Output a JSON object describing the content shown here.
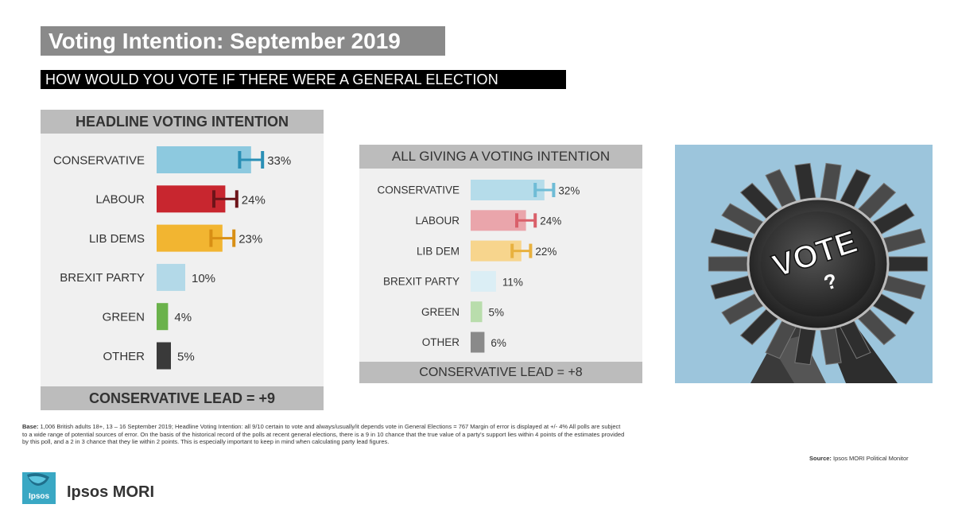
{
  "title": "Voting Intention: September 2019",
  "question": "HOW WOULD YOU VOTE IF THERE WERE A GENERAL ELECTION TOMORROW?",
  "chart_data": [
    {
      "type": "bar",
      "title": "HEADLINE VOTING INTENTION",
      "categories": [
        "CONSERVATIVE",
        "LABOUR",
        "LIB DEMS",
        "BREXIT PARTY",
        "GREEN",
        "OTHER"
      ],
      "values": [
        33,
        24,
        23,
        10,
        4,
        5
      ],
      "value_labels": [
        "33%",
        "24%",
        "23%",
        "10%",
        "4%",
        "5%"
      ],
      "colors": [
        "#8dc9df",
        "#c8262f",
        "#f2b531",
        "#b3d9e8",
        "#6ab24b",
        "#3a3a3a"
      ],
      "error_bar_colors": [
        "#2a8fb5",
        "#6d1419",
        "#d88f14",
        null,
        null,
        null
      ],
      "error_margin": 4,
      "footer": "CONSERVATIVE LEAD = +9"
    },
    {
      "type": "bar",
      "title": "ALL GIVING A VOTING INTENTION",
      "categories": [
        "CONSERVATIVE",
        "LABOUR",
        "LIB DEM",
        "BREXIT PARTY",
        "GREEN",
        "OTHER"
      ],
      "values": [
        32,
        24,
        22,
        11,
        5,
        6
      ],
      "value_labels": [
        "32%",
        "24%",
        "22%",
        "11%",
        "5%",
        "6%"
      ],
      "colors": [
        "#b5dcea",
        "#eaa5ab",
        "#f7d58d",
        "#dbeef5",
        "#b9ddac",
        "#8a8a8a"
      ],
      "error_bar_colors": [
        "#6fbcd6",
        "#d9606a",
        "#e8b13f",
        null,
        null,
        null
      ],
      "error_margin": 4,
      "footer": "CONSERVATIVE LEAD = +8"
    }
  ],
  "image": {
    "rosette_text_1": "VOTE",
    "rosette_text_2": "?"
  },
  "footnote": {
    "base_label": "Base:",
    "text": "1,006 British adults 18+, 13 – 16 September 2019; Headline Voting Intention: all 9/10 certain to vote and always/usually/it depends vote in General Elections = 767 Margin of error is displayed at +/- 4% All polls are subject to a wide range of potential sources of error. On the basis of the historical record of the polls at recent general elections, there is a 9 in 10 chance that the true value of a party's support lies within 4 points of the estimates provided by this poll, and a 2 in 3 chance that they lie within 2 points. This is especially important to keep in mind when calculating party lead figures."
  },
  "source": {
    "label": "Source:",
    "text": "Ipsos MORI Political Monitor"
  },
  "logo": {
    "mark_text": "Ipsos",
    "brand": "Ipsos MORI"
  }
}
